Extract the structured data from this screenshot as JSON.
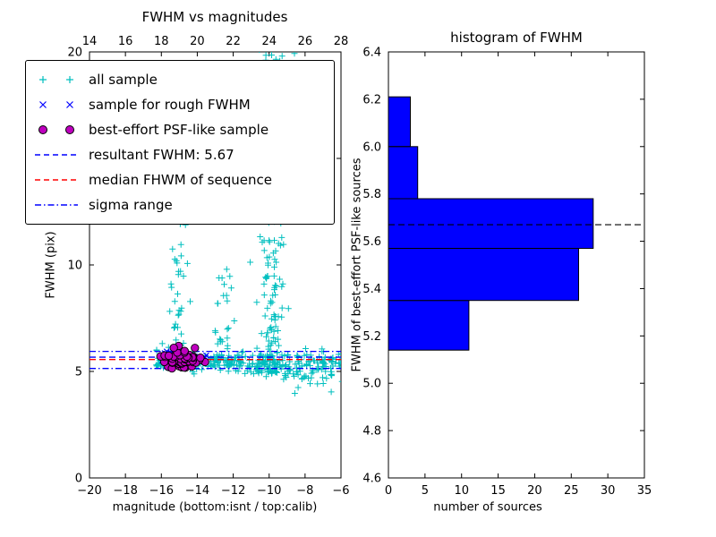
{
  "figure": {
    "background": "#ffffff"
  },
  "chart_data": [
    {
      "type": "scatter",
      "title": "FWHM vs magnitudes",
      "xlabel": "magnitude (bottom:isnt / top:calib)",
      "ylabel": "FWHM (pix)",
      "xlim": [
        -20,
        -6
      ],
      "ylim": [
        0,
        20
      ],
      "xlim_top_calib": [
        14,
        28
      ],
      "x_ticks_bottom": [
        -20,
        -18,
        -16,
        -14,
        -12,
        -10,
        -8,
        -6
      ],
      "x_ticks_top": [
        14,
        16,
        18,
        20,
        22,
        24,
        26,
        28
      ],
      "y_ticks": [
        0,
        5,
        10,
        15,
        20
      ],
      "grid": false,
      "legend_position": "upper left",
      "lines": [
        {
          "name": "resultant-fwhm",
          "label": "resultant FWHM: 5.67",
          "y": 5.67,
          "color": "#0000ff",
          "style": "dashed"
        },
        {
          "name": "median-fwhm",
          "label": "median FHWM of sequence",
          "y": 5.56,
          "color": "#ff0000",
          "style": "dashed"
        },
        {
          "name": "sigma-upper",
          "label": "sigma range",
          "y": 5.94,
          "color": "#0000ff",
          "style": "dashdot"
        },
        {
          "name": "sigma-lower",
          "label": "sigma range",
          "y": 5.14,
          "color": "#0000ff",
          "style": "dashdot"
        }
      ],
      "series": [
        {
          "name": "all sample",
          "marker": "+",
          "color": "#00bfbf",
          "clusters": [
            {
              "type": "band",
              "n": 170,
              "x_range": [
                -16.3,
                -11.3
              ],
              "y_mean": 5.45,
              "y_sd": 0.2
            },
            {
              "type": "band",
              "n": 150,
              "x_range": [
                -11.3,
                -5.9
              ],
              "y_mean": 5.4,
              "y_sd": 0.28
            },
            {
              "type": "band",
              "n": 18,
              "x_range": [
                -9.2,
                -5.9
              ],
              "y_mean": 4.6,
              "y_sd": 0.22
            },
            {
              "type": "plume",
              "n": 55,
              "x_mean": -15.2,
              "x_sd": 0.28,
              "y_range": [
                5.6,
                12.8
              ],
              "pow": 2.2
            },
            {
              "type": "plume",
              "n": 35,
              "x_mean": -12.4,
              "x_sd": 0.35,
              "y_range": [
                5.5,
                9.8
              ],
              "pow": 2.4
            },
            {
              "type": "plume",
              "n": 170,
              "x_mean": -9.85,
              "x_sd": 0.42,
              "y_range": [
                4.9,
                20.2
              ],
              "pow": 1.9
            },
            {
              "type": "plume",
              "n": 48,
              "x_mean": -9.6,
              "x_sd": 0.55,
              "y_range": [
                13.5,
                20.2
              ],
              "pow": 1.0
            }
          ]
        },
        {
          "name": "sample for rough FWHM",
          "marker": "x",
          "color": "#0000ff",
          "clusters": [
            {
              "type": "band",
              "n": 30,
              "x_range": [
                -16.0,
                -13.5
              ],
              "y_mean": 5.6,
              "y_sd": 0.12
            },
            {
              "type": "band",
              "n": 8,
              "x_range": [
                -15.9,
                -14.7
              ],
              "y_mean": 5.85,
              "y_sd": 0.06
            }
          ]
        },
        {
          "name": "best-effort PSF-like sample",
          "marker": "o",
          "color": "#bf00bf",
          "edge_color": "#000000",
          "x_mean": -14.9,
          "x_sd": 0.6,
          "x_clamp": [
            -16.05,
            -13.55
          ],
          "y_distribution": "from histogram bins"
        }
      ]
    },
    {
      "type": "bar",
      "orientation": "horizontal",
      "title": "histogram of FWHM",
      "xlabel": "number of sources",
      "ylabel": "FWHM of best-effort PSF-like sources",
      "xlim": [
        0,
        35
      ],
      "ylim": [
        4.6,
        6.4
      ],
      "x_ticks": [
        0,
        5,
        10,
        15,
        20,
        25,
        30,
        35
      ],
      "y_ticks": [
        4.6,
        4.8,
        5.0,
        5.2,
        5.4,
        5.6,
        5.8,
        6.0,
        6.2,
        6.4
      ],
      "bin_edges": [
        5.14,
        5.35,
        5.57,
        5.78,
        6.0,
        6.21
      ],
      "counts": [
        11,
        26,
        28,
        4,
        3
      ],
      "bar_color": "#0000ff",
      "bar_edge_color": "#000000",
      "dashed_line": {
        "y": 5.67,
        "color": "#000000",
        "style": "dashed"
      }
    }
  ],
  "legend": {
    "entries": [
      {
        "type": "plus",
        "color": "#00bfbf",
        "label": "all sample"
      },
      {
        "type": "x",
        "color": "#0000ff",
        "label": "sample for rough FWHM"
      },
      {
        "type": "circle",
        "color": "#bf00bf",
        "edge": "#000000",
        "label": "best-effort PSF-like sample"
      },
      {
        "type": "dashed",
        "color": "#0000ff",
        "label": "resultant FWHM: 5.67"
      },
      {
        "type": "dashed",
        "color": "#ff0000",
        "label": "median FHWM of sequence"
      },
      {
        "type": "dashdot",
        "color": "#0000ff",
        "label": "sigma range"
      }
    ]
  }
}
